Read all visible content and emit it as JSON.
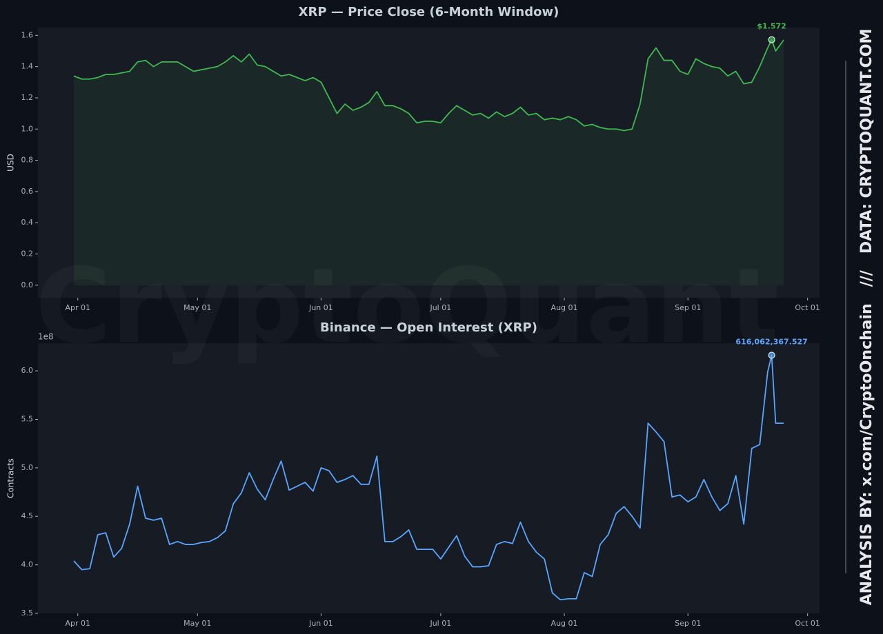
{
  "watermark": "CryptoQuant",
  "side_text": [
    "ANALYSIS BY: x.com/CryptoOnchain",
    "///",
    "DATA: CRYPTOQUANT.COM"
  ],
  "chart_data": [
    {
      "type": "line",
      "title": "XRP — Price Close (6-Month Window)",
      "y_label": "USD",
      "fill": true,
      "x": [
        "Mar 31",
        "Apr 02",
        "Apr 04",
        "Apr 06",
        "Apr 08",
        "Apr 10",
        "Apr 12",
        "Apr 14",
        "Apr 16",
        "Apr 18",
        "Apr 20",
        "Apr 22",
        "Apr 24",
        "Apr 26",
        "Apr 28",
        "Apr 30",
        "May 02",
        "May 04",
        "May 06",
        "May 08",
        "May 10",
        "May 12",
        "May 14",
        "May 16",
        "May 18",
        "May 20",
        "May 22",
        "May 24",
        "May 26",
        "May 28",
        "May 30",
        "Jun 01",
        "Jun 03",
        "Jun 05",
        "Jun 07",
        "Jun 09",
        "Jun 11",
        "Jun 13",
        "Jun 15",
        "Jun 17",
        "Jun 19",
        "Jun 21",
        "Jun 23",
        "Jun 25",
        "Jun 27",
        "Jun 29",
        "Jul 01",
        "Jul 03",
        "Jul 05",
        "Jul 07",
        "Jul 09",
        "Jul 11",
        "Jul 13",
        "Jul 15",
        "Jul 17",
        "Jul 19",
        "Jul 21",
        "Jul 23",
        "Jul 25",
        "Jul 27",
        "Jul 29",
        "Jul 31",
        "Aug 02",
        "Aug 04",
        "Aug 06",
        "Aug 08",
        "Aug 10",
        "Aug 12",
        "Aug 14",
        "Aug 16",
        "Aug 18",
        "Aug 20",
        "Aug 22",
        "Aug 24",
        "Aug 26",
        "Aug 28",
        "Aug 30",
        "Sep 01",
        "Sep 03",
        "Sep 05",
        "Sep 07",
        "Sep 09",
        "Sep 11",
        "Sep 13",
        "Sep 15",
        "Sep 17",
        "Sep 19",
        "Sep 21",
        "Sep 22",
        "Sep 23",
        "Sep 25"
      ],
      "series": [
        {
          "name": "Price Close",
          "color": "#3fb950",
          "values": [
            1.34,
            1.32,
            1.32,
            1.33,
            1.35,
            1.35,
            1.36,
            1.37,
            1.43,
            1.44,
            1.4,
            1.43,
            1.43,
            1.43,
            1.4,
            1.37,
            1.38,
            1.39,
            1.4,
            1.43,
            1.47,
            1.43,
            1.48,
            1.41,
            1.4,
            1.37,
            1.34,
            1.35,
            1.33,
            1.31,
            1.33,
            1.3,
            1.2,
            1.1,
            1.16,
            1.12,
            1.14,
            1.17,
            1.24,
            1.15,
            1.15,
            1.13,
            1.1,
            1.04,
            1.05,
            1.05,
            1.04,
            1.1,
            1.15,
            1.12,
            1.09,
            1.1,
            1.07,
            1.11,
            1.08,
            1.1,
            1.14,
            1.09,
            1.1,
            1.06,
            1.07,
            1.06,
            1.08,
            1.06,
            1.02,
            1.03,
            1.01,
            1.0,
            1.0,
            0.99,
            1.0,
            1.16,
            1.45,
            1.52,
            1.44,
            1.44,
            1.37,
            1.35,
            1.45,
            1.42,
            1.4,
            1.39,
            1.34,
            1.37,
            1.29,
            1.3,
            1.4,
            1.52,
            1.572,
            1.5,
            1.57
          ],
          "value_labels": [
            null,
            null,
            null,
            null,
            null,
            null,
            null,
            null,
            null,
            null,
            null,
            null,
            null,
            null,
            null,
            null,
            null,
            null,
            null,
            null,
            null,
            null,
            null,
            null,
            null,
            null,
            null,
            null,
            null,
            null,
            null,
            null,
            null,
            null,
            null,
            null,
            null,
            null,
            null,
            null,
            null,
            null,
            null,
            null,
            null,
            null,
            null,
            null,
            null,
            null,
            null,
            null,
            null,
            null,
            null,
            null,
            null,
            null,
            null,
            null,
            null,
            null,
            null,
            null,
            null,
            null,
            null,
            null,
            null,
            null,
            null,
            null,
            null,
            null,
            null,
            null,
            null,
            null,
            null,
            null,
            null,
            null,
            null,
            null,
            null,
            null,
            null,
            null,
            "$1.572",
            null,
            null
          ]
        }
      ],
      "xlim": [
        "Mar 22",
        "Oct 04"
      ],
      "xticks": [
        "Apr 01",
        "May 01",
        "Jun 01",
        "Jul 01",
        "Aug 01",
        "Sep 01",
        "Oct 01"
      ],
      "ylim": [
        -0.08,
        1.65
      ],
      "yticks": [
        {
          "value": 0,
          "label": "0.0"
        },
        0.2,
        0.4,
        0.6,
        0.8,
        {
          "value": 1,
          "label": "1.0"
        },
        1.2,
        1.4,
        1.6
      ]
    },
    {
      "type": "line",
      "title": "Binance — Open Interest (XRP)",
      "y_label": "Contracts",
      "y_offset_label": "1e8",
      "fill": false,
      "x": [
        "Mar 31",
        "Apr 02",
        "Apr 04",
        "Apr 06",
        "Apr 08",
        "Apr 10",
        "Apr 12",
        "Apr 14",
        "Apr 16",
        "Apr 18",
        "Apr 20",
        "Apr 22",
        "Apr 24",
        "Apr 26",
        "Apr 28",
        "Apr 30",
        "May 02",
        "May 04",
        "May 06",
        "May 08",
        "May 10",
        "May 12",
        "May 14",
        "May 16",
        "May 18",
        "May 20",
        "May 22",
        "May 24",
        "May 26",
        "May 28",
        "May 30",
        "Jun 01",
        "Jun 03",
        "Jun 05",
        "Jun 07",
        "Jun 09",
        "Jun 11",
        "Jun 13",
        "Jun 15",
        "Jun 17",
        "Jun 19",
        "Jun 21",
        "Jun 23",
        "Jun 25",
        "Jun 27",
        "Jun 29",
        "Jul 01",
        "Jul 03",
        "Jul 05",
        "Jul 07",
        "Jul 09",
        "Jul 11",
        "Jul 13",
        "Jul 15",
        "Jul 17",
        "Jul 19",
        "Jul 21",
        "Jul 23",
        "Jul 25",
        "Jul 27",
        "Jul 29",
        "Jul 31",
        "Aug 02",
        "Aug 04",
        "Aug 06",
        "Aug 08",
        "Aug 10",
        "Aug 12",
        "Aug 14",
        "Aug 16",
        "Aug 18",
        "Aug 20",
        "Aug 22",
        "Aug 24",
        "Aug 26",
        "Aug 28",
        "Aug 30",
        "Sep 01",
        "Sep 03",
        "Sep 05",
        "Sep 07",
        "Sep 09",
        "Sep 11",
        "Sep 13",
        "Sep 15",
        "Sep 17",
        "Sep 19",
        "Sep 21",
        "Sep 22",
        "Sep 23",
        "Sep 25"
      ],
      "series": [
        {
          "name": "Open Interest",
          "color": "#58a6ff",
          "values": [
            404000000,
            395000000,
            396000000,
            431000000,
            433000000,
            408000000,
            417000000,
            442000000,
            481000000,
            448000000,
            446000000,
            448000000,
            421000000,
            424000000,
            421000000,
            421000000,
            423000000,
            424000000,
            428000000,
            435000000,
            463000000,
            474000000,
            495000000,
            478000000,
            467000000,
            488000000,
            507000000,
            477000000,
            481000000,
            485000000,
            476000000,
            500000000,
            497000000,
            485000000,
            488000000,
            492000000,
            483000000,
            483000000,
            512000000,
            424000000,
            424000000,
            429000000,
            436000000,
            416000000,
            416000000,
            416000000,
            406000000,
            418000000,
            430000000,
            409000000,
            398000000,
            398000000,
            399000000,
            421000000,
            424000000,
            422000000,
            444000000,
            424000000,
            413000000,
            406000000,
            371000000,
            364000000,
            365000000,
            365000000,
            392000000,
            388000000,
            421000000,
            431000000,
            453000000,
            460000000,
            450000000,
            438000000,
            546000000,
            537000000,
            527000000,
            470000000,
            472000000,
            465000000,
            470000000,
            488000000,
            470000000,
            456000000,
            463000000,
            492000000,
            442000000,
            520000000,
            524000000,
            599000000,
            616062367.527,
            546000000,
            546000000
          ],
          "value_labels": [
            null,
            null,
            null,
            null,
            null,
            null,
            null,
            null,
            null,
            null,
            null,
            null,
            null,
            null,
            null,
            null,
            null,
            null,
            null,
            null,
            null,
            null,
            null,
            null,
            null,
            null,
            null,
            null,
            null,
            null,
            null,
            null,
            null,
            null,
            null,
            null,
            null,
            null,
            null,
            null,
            null,
            null,
            null,
            null,
            null,
            null,
            null,
            null,
            null,
            null,
            null,
            null,
            null,
            null,
            null,
            null,
            null,
            null,
            null,
            null,
            null,
            null,
            null,
            null,
            null,
            null,
            null,
            null,
            null,
            null,
            null,
            null,
            null,
            null,
            null,
            null,
            null,
            null,
            null,
            null,
            null,
            null,
            null,
            null,
            null,
            null,
            null,
            null,
            "616,062,367.527",
            null,
            null
          ]
        }
      ],
      "xlim": [
        "Mar 22",
        "Oct 04"
      ],
      "xticks": [
        "Apr 01",
        "May 01",
        "Jun 01",
        "Jul 01",
        "Aug 01",
        "Sep 01",
        "Oct 01"
      ],
      "ylim": [
        350000000,
        628500000
      ],
      "yticks": [
        {
          "value": 350000000,
          "label": "3.5"
        },
        {
          "value": 400000000,
          "label": "4.0"
        },
        {
          "value": 450000000,
          "label": "4.5"
        },
        {
          "value": 500000000,
          "label": "5.0"
        },
        {
          "value": 550000000,
          "label": "5.5"
        },
        {
          "value": 600000000,
          "label": "6.0"
        }
      ]
    }
  ]
}
